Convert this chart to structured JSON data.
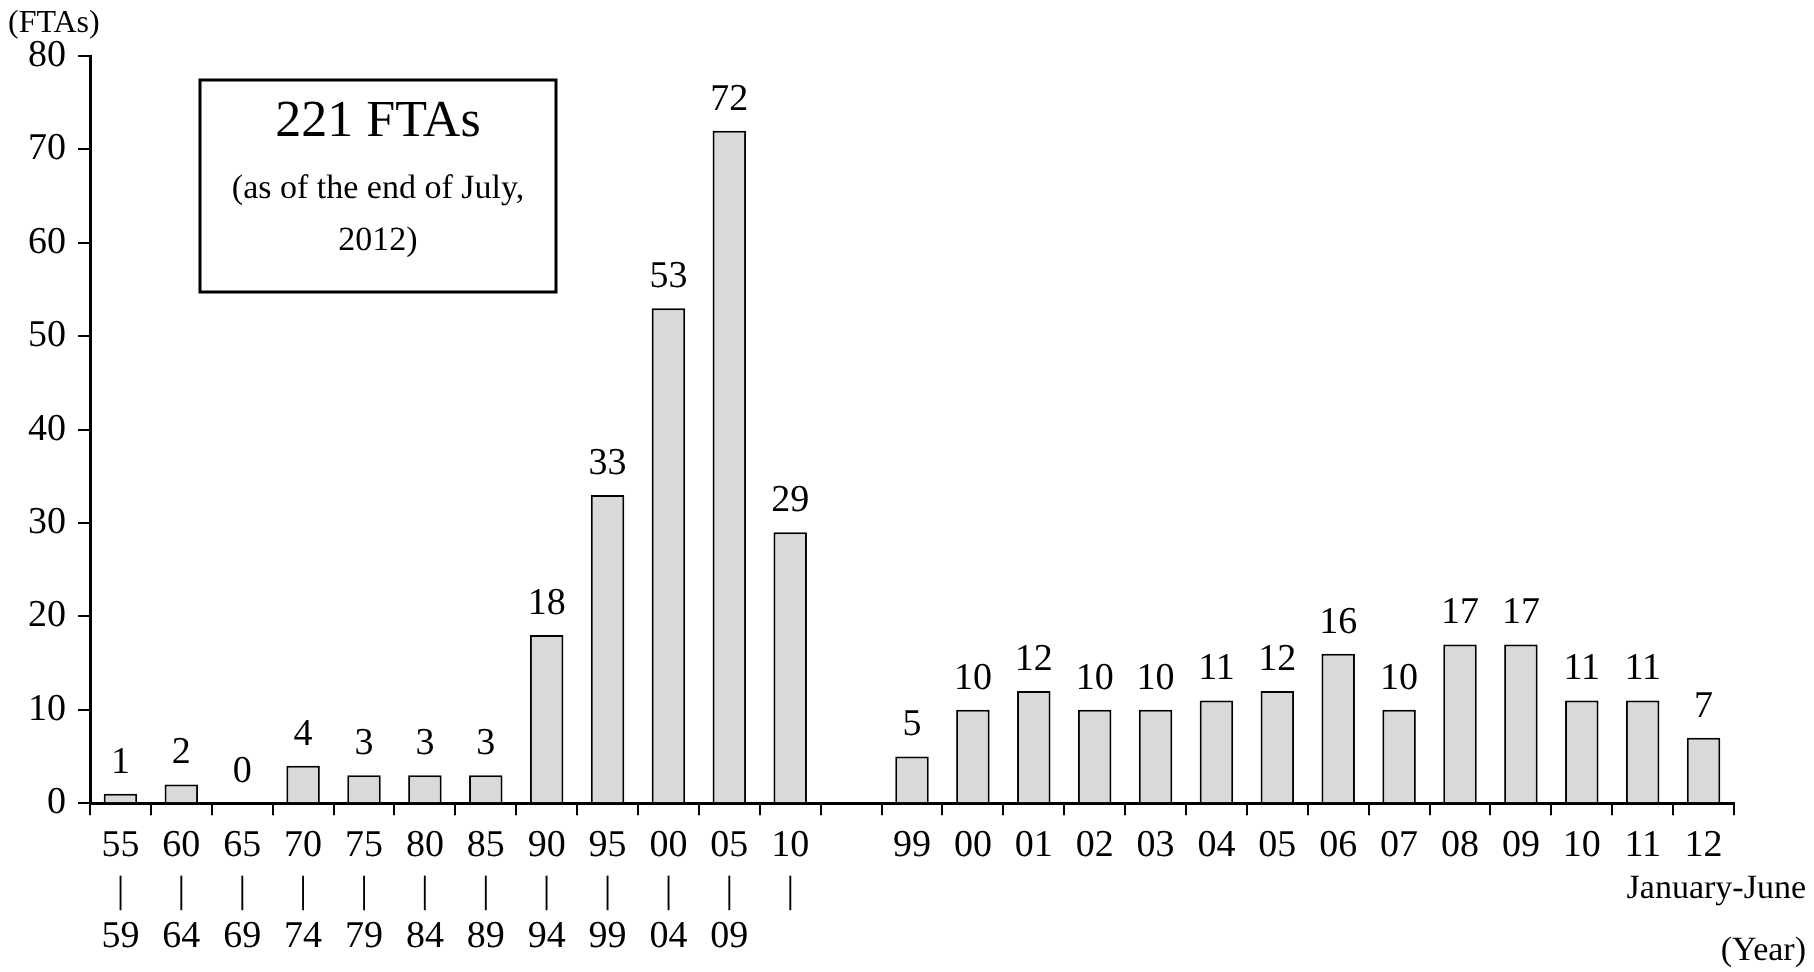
{
  "chart_data": {
    "type": "bar",
    "ylabel": "(FTAs)",
    "xlabel": "(Year)",
    "categories": [
      "55\n|\n59",
      "60\n|\n64",
      "65\n|\n69",
      "70\n|\n74",
      "75\n|\n79",
      "80\n|\n84",
      "85\n|\n89",
      "90\n|\n94",
      "95\n|\n99",
      "00\n|\n04",
      "05\n|\n09",
      "10\n|",
      null,
      "99",
      "00",
      "01",
      "02",
      "03",
      "04",
      "05",
      "06",
      "07",
      "08",
      "09",
      "10",
      "11",
      "12"
    ],
    "values": [
      1,
      2,
      0,
      4,
      3,
      3,
      3,
      18,
      33,
      53,
      72,
      29,
      null,
      5,
      10,
      12,
      10,
      10,
      11,
      12,
      16,
      10,
      17,
      17,
      11,
      11,
      7
    ],
    "color": "#d9d9d9",
    "ylim": [
      0,
      80
    ],
    "yticks": [
      0,
      10,
      20,
      30,
      40,
      50,
      60,
      70,
      80
    ],
    "grid": false,
    "legend": false,
    "data_labels": true,
    "annotations": [
      "221 FTAs",
      "(as of the end of July,\n2012)",
      "January-June"
    ]
  }
}
